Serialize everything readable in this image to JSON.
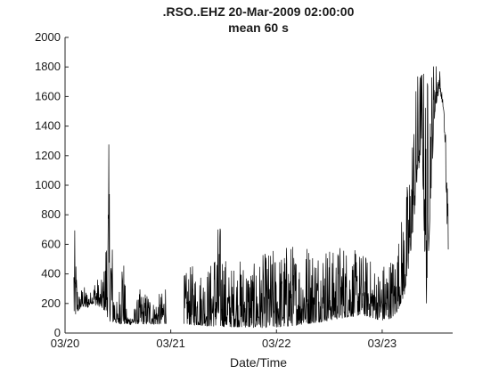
{
  "chart_data": {
    "type": "line",
    "title": ".RSO..EHZ 20-Mar-2009 02:00:00",
    "subtitle": "mean 60 s",
    "xlabel": "Date/Time",
    "ylabel": "",
    "xlim": [
      "2009-03-20 00:00",
      "2009-03-23 16:00"
    ],
    "ylim": [
      0,
      2000
    ],
    "grid": false,
    "legend": "none",
    "line_color": "#000000",
    "x_ticks": [
      {
        "value": "2009-03-20 00:00",
        "label": "03/20"
      },
      {
        "value": "2009-03-21 00:00",
        "label": "03/21"
      },
      {
        "value": "2009-03-22 00:00",
        "label": "03/22"
      },
      {
        "value": "2009-03-23 00:00",
        "label": "03/23"
      }
    ],
    "y_ticks": [
      {
        "value": 0,
        "label": "0"
      },
      {
        "value": 200,
        "label": "200"
      },
      {
        "value": 400,
        "label": "400"
      },
      {
        "value": 600,
        "label": "600"
      },
      {
        "value": 800,
        "label": "800"
      },
      {
        "value": 1000,
        "label": "1000"
      },
      {
        "value": 1200,
        "label": "1200"
      },
      {
        "value": 1400,
        "label": "1400"
      },
      {
        "value": 1600,
        "label": "1600"
      },
      {
        "value": 1800,
        "label": "1800"
      },
      {
        "value": 2000,
        "label": "2000"
      }
    ],
    "series": [
      {
        "segments": [
          {
            "x": [
              "2009-03-20 02:00",
              "2009-03-20 03:00",
              "2009-03-20 04:00",
              "2009-03-20 05:00",
              "2009-03-20 06:00",
              "2009-03-20 07:00",
              "2009-03-20 08:00",
              "2009-03-20 09:00",
              "2009-03-20 10:00",
              "2009-03-20 11:00",
              "2009-03-20 12:00",
              "2009-03-20 13:00",
              "2009-03-20 14:00",
              "2009-03-20 15:00",
              "2009-03-20 16:00",
              "2009-03-20 17:00",
              "2009-03-20 18:00",
              "2009-03-20 19:00",
              "2009-03-20 20:00",
              "2009-03-20 21:00",
              "2009-03-20 22:00",
              "2009-03-20 23:00"
            ],
            "base": [
              95,
              150,
              180,
              165,
              200,
              185,
              175,
              150,
              80,
              68,
              62,
              60,
              58,
              58,
              62,
              58,
              60,
              62,
              60,
              58,
              60,
              62
            ],
            "peak": [
              810,
              260,
              330,
              300,
              280,
              420,
              320,
              480,
              1340,
              420,
              150,
              730,
              130,
              130,
              190,
              300,
              280,
              300,
              220,
              260,
              280,
              420
            ]
          },
          {
            "x": [
              "2009-03-21 03:00",
              "2009-03-21 05:00",
              "2009-03-21 07:00",
              "2009-03-21 09:00",
              "2009-03-21 11:00",
              "2009-03-21 13:00",
              "2009-03-21 15:00",
              "2009-03-21 17:00",
              "2009-03-21 19:00",
              "2009-03-21 21:00",
              "2009-03-21 23:00",
              "2009-03-22 01:00",
              "2009-03-22 03:00",
              "2009-03-22 05:00",
              "2009-03-22 07:00",
              "2009-03-22 09:00",
              "2009-03-22 11:00",
              "2009-03-22 13:00",
              "2009-03-22 15:00",
              "2009-03-22 17:00",
              "2009-03-22 19:00",
              "2009-03-22 21:00",
              "2009-03-22 23:00",
              "2009-03-23 01:00",
              "2009-03-23 03:00",
              "2009-03-23 05:00",
              "2009-03-23 06:00",
              "2009-03-23 07:00",
              "2009-03-23 08:00",
              "2009-03-23 09:00",
              "2009-03-23 10:00",
              "2009-03-23 11:00",
              "2009-03-23 12:00",
              "2009-03-23 13:00",
              "2009-03-23 14:00",
              "2009-03-23 15:00"
            ],
            "base": [
              60,
              55,
              50,
              45,
              42,
              40,
              40,
              38,
              35,
              35,
              35,
              40,
              45,
              55,
              60,
              70,
              80,
              90,
              100,
              110,
              120,
              110,
              90,
              80,
              120,
              250,
              400,
              700,
              1000,
              1300,
              150,
              900,
              1500,
              1650,
              1500,
              400
            ],
            "peak": [
              400,
              470,
              440,
              480,
              800,
              430,
              500,
              520,
              470,
              540,
              580,
              560,
              650,
              560,
              650,
              610,
              650,
              560,
              650,
              560,
              570,
              520,
              440,
              520,
              560,
              900,
              1100,
              1500,
              1800,
              1850,
              1800,
              1870,
              1870,
              1820,
              1500,
              1200
            ]
          }
        ]
      }
    ]
  }
}
